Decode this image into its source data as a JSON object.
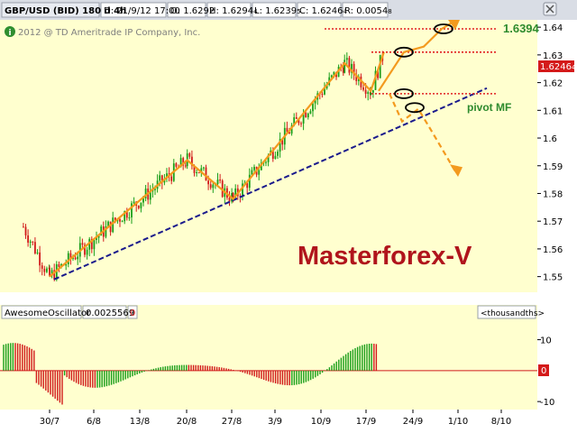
{
  "header": {
    "symbol": "GBP/USD (BID) 180 d 4h",
    "date": "D: 21/9/12 17:00",
    "open": "O: 1.6292",
    "high": "H: 1.6294",
    "high_small": "4",
    "low": "L: 1.6239",
    "low_small": "5",
    "close": "C: 1.6246",
    "close_small": "4",
    "range": "R: 0.0054",
    "range_small": "8"
  },
  "copyright": "2012 @ TD Ameritrade IP Company, Inc.",
  "watermark": "Masterforex-V",
  "annotations": {
    "target": "1.6394",
    "pivot": "pivot MF"
  },
  "price_badge": "1.6246",
  "price_badge_small": "4",
  "oscillator": {
    "name": "AwesomeOscillator",
    "value": "0.0025569",
    "zero": "0",
    "units": "<thousandths>",
    "zero_badge": "0"
  },
  "colors": {
    "up": "#1a9e1a",
    "down": "#d11a1a",
    "zigzag": "#f39a1e",
    "trend": "#1a1a8c",
    "resistance": "#e02020",
    "target": "#2e8b2e"
  },
  "chart_data": [
    {
      "type": "candlestick",
      "ylim": [
        1.545,
        1.642
      ],
      "yticks": [
        "1.55",
        "1.56",
        "1.57",
        "1.58",
        "1.59",
        "1.6",
        "1.61",
        "1.62",
        "1.63",
        "1.64"
      ],
      "xticks": [
        "30/7",
        "6/8",
        "13/8",
        "20/8",
        "27/8",
        "3/9",
        "10/9",
        "17/9",
        "24/9",
        "1/10",
        "8/10"
      ],
      "key_points": [
        {
          "date": "26/7",
          "price": 1.568
        },
        {
          "date": "30/7",
          "price": 1.55
        },
        {
          "date": "20/8",
          "price": 1.592
        },
        {
          "date": "27/8",
          "price": 1.578
        },
        {
          "date": "13/9",
          "price": 1.627
        },
        {
          "date": "17/9",
          "price": 1.617
        },
        {
          "date": "19/9",
          "price": 1.631
        }
      ],
      "levels": [
        1.6394,
        1.631,
        1.616
      ]
    },
    {
      "type": "bar",
      "name": "AwesomeOscillator",
      "ylim": [
        -12,
        16
      ],
      "yticks": [
        "10",
        "0",
        "-10"
      ]
    }
  ]
}
